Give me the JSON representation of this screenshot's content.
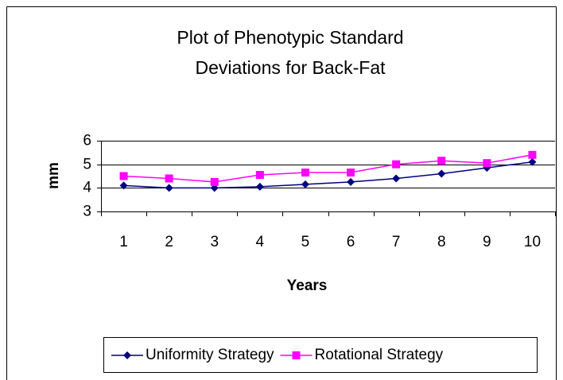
{
  "chart_data": {
    "type": "line",
    "title": "Plot of Phenotypic Standard Deviations for Back-Fat",
    "x_label": "Years",
    "y_label": "mm",
    "categories": [
      "1",
      "2",
      "3",
      "4",
      "5",
      "6",
      "7",
      "8",
      "9",
      "10"
    ],
    "series": [
      {
        "name": "Uniformity Strategy",
        "color": "#000080",
        "marker": "diamond",
        "values": [
          4.1,
          4.0,
          4.0,
          4.05,
          4.15,
          4.25,
          4.4,
          4.6,
          4.85,
          5.1
        ]
      },
      {
        "name": "Rotational Strategy",
        "color": "#ff00ff",
        "marker": "square",
        "values": [
          4.5,
          4.4,
          4.25,
          4.55,
          4.65,
          4.65,
          5.0,
          5.15,
          5.05,
          5.4
        ]
      }
    ],
    "ylim": [
      3,
      6
    ],
    "yticks": [
      3,
      4,
      5,
      6
    ],
    "grid": true,
    "legend": "bottom"
  }
}
